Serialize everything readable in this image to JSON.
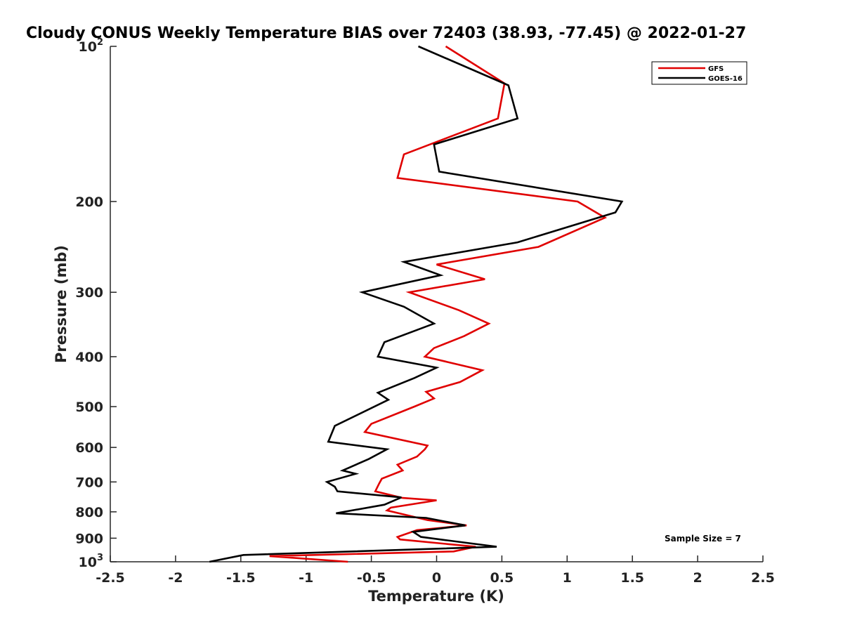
{
  "chart_data": {
    "type": "line",
    "title": "Cloudy CONUS Weekly Temperature BIAS over 72403 (38.93, -77.45) @ 2022-01-27",
    "xlabel": "Temperature (K)",
    "ylabel": "Pressure (mb)",
    "xlim": [
      -2.5,
      2.5
    ],
    "ylim": [
      100,
      1000
    ],
    "y_scale": "log",
    "y_reversed": true,
    "grid": false,
    "legend_position": "top-right",
    "x_ticks": [
      "-2.5",
      "-2",
      "-1.5",
      "-1",
      "-0.5",
      "0",
      "0.5",
      "1",
      "1.5",
      "2",
      "2.5"
    ],
    "x_tick_values": [
      -2.5,
      -2,
      -1.5,
      -1,
      -0.5,
      0,
      0.5,
      1,
      1.5,
      2,
      2.5
    ],
    "y_ticks": [
      {
        "value": 100,
        "base": "10",
        "exp": "2"
      },
      {
        "value": 200,
        "base": "200",
        "exp": ""
      },
      {
        "value": 300,
        "base": "300",
        "exp": ""
      },
      {
        "value": 400,
        "base": "400",
        "exp": ""
      },
      {
        "value": 500,
        "base": "500",
        "exp": ""
      },
      {
        "value": 600,
        "base": "600",
        "exp": ""
      },
      {
        "value": 700,
        "base": "700",
        "exp": ""
      },
      {
        "value": 800,
        "base": "800",
        "exp": ""
      },
      {
        "value": 900,
        "base": "900",
        "exp": ""
      },
      {
        "value": 1000,
        "base": "10",
        "exp": "3"
      }
    ],
    "annotation": "Sample Size = 7",
    "series": [
      {
        "name": "GFS",
        "color": "#e00000",
        "points": [
          [
            0.07,
            100
          ],
          [
            0.52,
            118
          ],
          [
            0.47,
            138
          ],
          [
            -0.25,
            162
          ],
          [
            -0.3,
            180
          ],
          [
            1.08,
            200
          ],
          [
            1.29,
            215
          ],
          [
            0.78,
            245
          ],
          [
            0.0,
            265
          ],
          [
            0.37,
            283
          ],
          [
            -0.21,
            300
          ],
          [
            0.17,
            325
          ],
          [
            0.4,
            345
          ],
          [
            0.21,
            365
          ],
          [
            -0.02,
            385
          ],
          [
            -0.09,
            400
          ],
          [
            0.35,
            425
          ],
          [
            0.18,
            448
          ],
          [
            -0.08,
            468
          ],
          [
            -0.02,
            482
          ],
          [
            -0.17,
            500
          ],
          [
            -0.5,
            540
          ],
          [
            -0.55,
            560
          ],
          [
            -0.07,
            595
          ],
          [
            -0.09,
            605
          ],
          [
            -0.15,
            625
          ],
          [
            -0.3,
            648
          ],
          [
            -0.26,
            665
          ],
          [
            -0.42,
            690
          ],
          [
            -0.44,
            705
          ],
          [
            -0.47,
            730
          ],
          [
            -0.26,
            752
          ],
          [
            0.0,
            760
          ],
          [
            -0.35,
            785
          ],
          [
            -0.38,
            795
          ],
          [
            -0.07,
            830
          ],
          [
            0.23,
            850
          ],
          [
            -0.15,
            868
          ],
          [
            -0.3,
            895
          ],
          [
            -0.28,
            905
          ],
          [
            0.3,
            935
          ],
          [
            0.13,
            955
          ],
          [
            -1.28,
            975
          ],
          [
            -0.68,
            1000
          ]
        ]
      },
      {
        "name": "GOES-16",
        "color": "#000000",
        "points": [
          [
            -0.14,
            100
          ],
          [
            0.55,
            119
          ],
          [
            0.62,
            138
          ],
          [
            -0.02,
            155
          ],
          [
            0.02,
            175
          ],
          [
            1.42,
            200
          ],
          [
            1.37,
            210
          ],
          [
            0.62,
            240
          ],
          [
            -0.25,
            262
          ],
          [
            0.03,
            278
          ],
          [
            -0.57,
            300
          ],
          [
            -0.25,
            320
          ],
          [
            -0.02,
            345
          ],
          [
            -0.4,
            375
          ],
          [
            -0.45,
            400
          ],
          [
            0.0,
            420
          ],
          [
            -0.17,
            440
          ],
          [
            -0.45,
            470
          ],
          [
            -0.37,
            485
          ],
          [
            -0.78,
            545
          ],
          [
            -0.83,
            585
          ],
          [
            -0.38,
            605
          ],
          [
            -0.52,
            632
          ],
          [
            -0.72,
            665
          ],
          [
            -0.62,
            675
          ],
          [
            -0.84,
            700
          ],
          [
            -0.78,
            715
          ],
          [
            -0.76,
            730
          ],
          [
            -0.27,
            750
          ],
          [
            -0.4,
            775
          ],
          [
            -0.77,
            805
          ],
          [
            -0.08,
            822
          ],
          [
            0.22,
            850
          ],
          [
            -0.18,
            875
          ],
          [
            -0.12,
            895
          ],
          [
            0.46,
            935
          ],
          [
            -1.48,
            970
          ],
          [
            -1.74,
            1000
          ]
        ]
      }
    ]
  }
}
